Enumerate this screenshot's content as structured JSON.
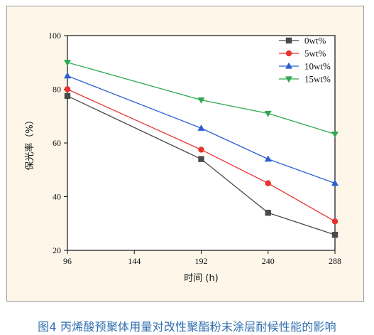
{
  "chart_data": {
    "type": "line",
    "x": [
      96,
      192,
      240,
      288
    ],
    "xticks": [
      96,
      144,
      192,
      240,
      288
    ],
    "yticks": [
      20,
      40,
      60,
      80,
      100
    ],
    "xlim": [
      96,
      288
    ],
    "ylim": [
      20,
      100
    ],
    "xlabel": "时间 (h)",
    "ylabel": "保光率（%）",
    "legend_position": "top-right",
    "grid": false,
    "series": [
      {
        "name": "0wt%",
        "values": [
          77.5,
          54.0,
          34.0,
          25.8
        ],
        "color": "#4a4a4a",
        "marker": "square"
      },
      {
        "name": "5wt%",
        "values": [
          80.0,
          57.5,
          45.0,
          30.8
        ],
        "color": "#e8322d",
        "marker": "circle"
      },
      {
        "name": "10wt%",
        "values": [
          85.0,
          65.5,
          54.0,
          45.0
        ],
        "color": "#2b5fd0",
        "marker": "triangle-up"
      },
      {
        "name": "15wt%",
        "values": [
          90.0,
          76.0,
          71.0,
          63.3
        ],
        "color": "#2fa84f",
        "marker": "triangle-down"
      }
    ]
  },
  "caption": "图4 丙烯酸预聚体用量对改性聚酯粉末涂层耐候性能的影响"
}
